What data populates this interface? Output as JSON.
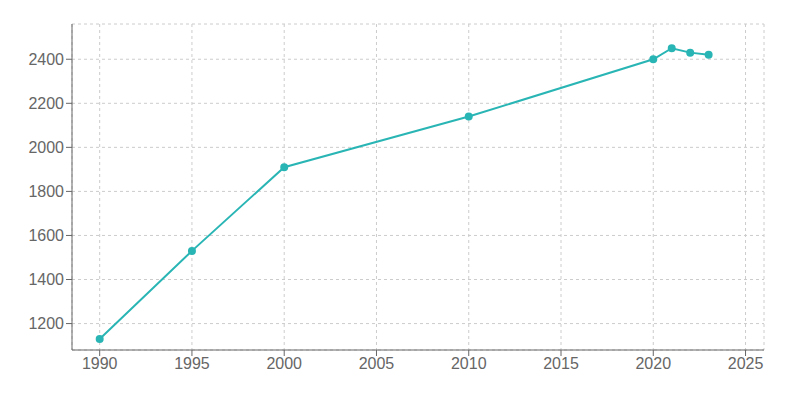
{
  "chart_data": {
    "type": "line",
    "x": [
      1990,
      1995,
      2000,
      2010,
      2020,
      2021,
      2022,
      2023
    ],
    "values": [
      1130,
      1530,
      1910,
      2140,
      2400,
      2450,
      2430,
      2420
    ],
    "color": "#2ab5b5",
    "marker": "circle",
    "xlim": [
      1988.5,
      2026
    ],
    "ylim": [
      1080,
      2560
    ],
    "xticks": [
      1990,
      1995,
      2000,
      2005,
      2010,
      2015,
      2020,
      2025
    ],
    "yticks": [
      1200,
      1400,
      1600,
      1800,
      2000,
      2200,
      2400
    ],
    "grid": true
  }
}
